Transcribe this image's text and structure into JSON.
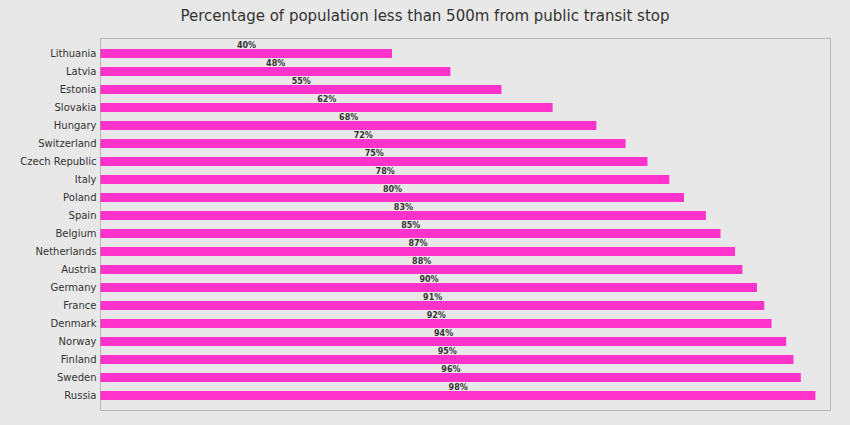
{
  "chart_data": {
    "type": "bar",
    "orientation": "horizontal",
    "title": "Percentage of population less than 500m from public transit stop",
    "categories": [
      "Russia",
      "Sweden",
      "Finland",
      "Norway",
      "Denmark",
      "France",
      "Germany",
      "Austria",
      "Netherlands",
      "Belgium",
      "Spain",
      "Poland",
      "Italy",
      "Czech Republic",
      "Switzerland",
      "Hungary",
      "Slovakia",
      "Estonia",
      "Latvia",
      "Lithuania"
    ],
    "values": [
      98,
      96,
      95,
      94,
      92,
      91,
      90,
      88,
      87,
      85,
      83,
      80,
      78,
      75,
      72,
      68,
      62,
      55,
      48,
      40
    ],
    "value_labels": [
      "98%",
      "96%",
      "95%",
      "94%",
      "92%",
      "91%",
      "90%",
      "88%",
      "87%",
      "85%",
      "83%",
      "80%",
      "78%",
      "75%",
      "72%",
      "68%",
      "62%",
      "55%",
      "48%",
      "40%"
    ],
    "color": "#FF33CC",
    "xlim": [
      0,
      100
    ],
    "data_labels": true,
    "tick_labels": "y",
    "grid": false
  }
}
